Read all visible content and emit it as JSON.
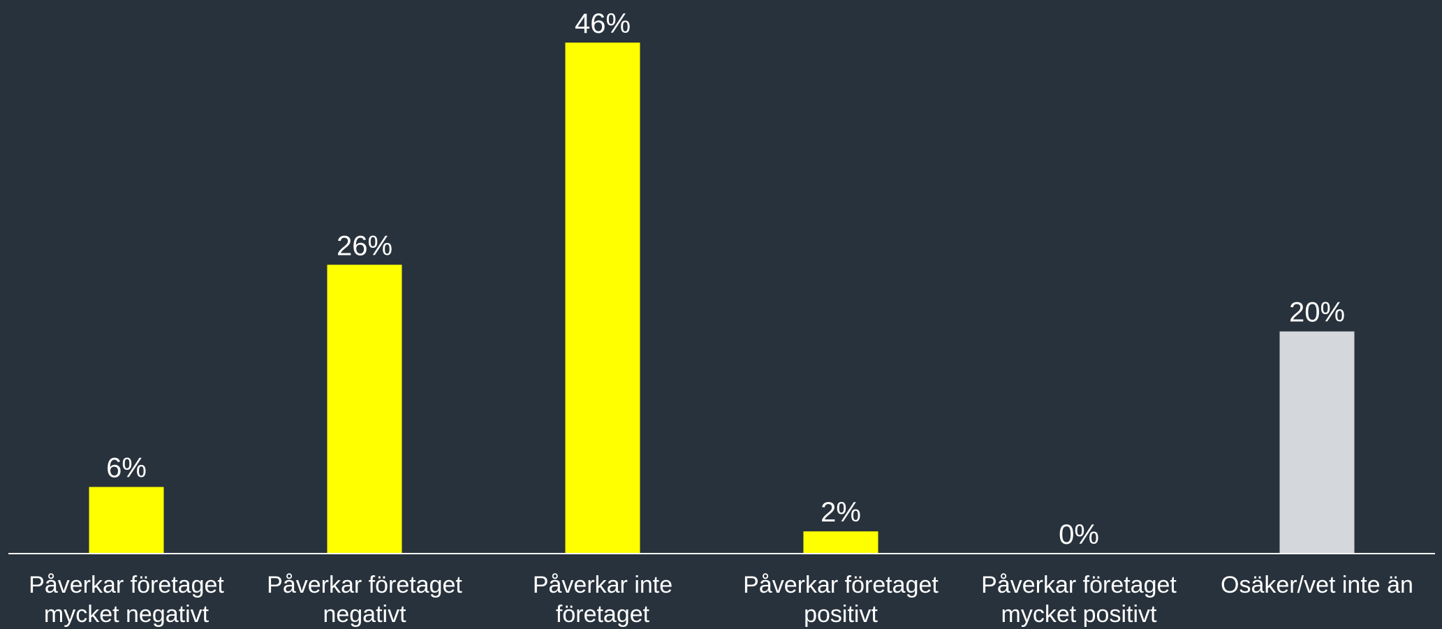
{
  "chart_data": {
    "type": "bar",
    "categories": [
      [
        "Påverkar företaget",
        "mycket negativt"
      ],
      [
        "Påverkar företaget",
        "negativt"
      ],
      [
        "Påverkar inte",
        "företaget"
      ],
      [
        "Påverkar företaget",
        "positivt"
      ],
      [
        "Påverkar företaget",
        "mycket positivt"
      ],
      [
        "Osäker/vet inte än"
      ]
    ],
    "values": [
      6,
      26,
      46,
      2,
      0,
      20
    ],
    "value_labels": [
      "6%",
      "26%",
      "46%",
      "2%",
      "0%",
      "20%"
    ],
    "ylim": [
      0,
      46
    ],
    "grid": false,
    "bar_colors": [
      "#ffff00",
      "#ffff00",
      "#ffff00",
      "#ffff00",
      "#ffff00",
      "#d4d7dc"
    ],
    "axis_color": "#ffffff",
    "background": "#28323c"
  }
}
